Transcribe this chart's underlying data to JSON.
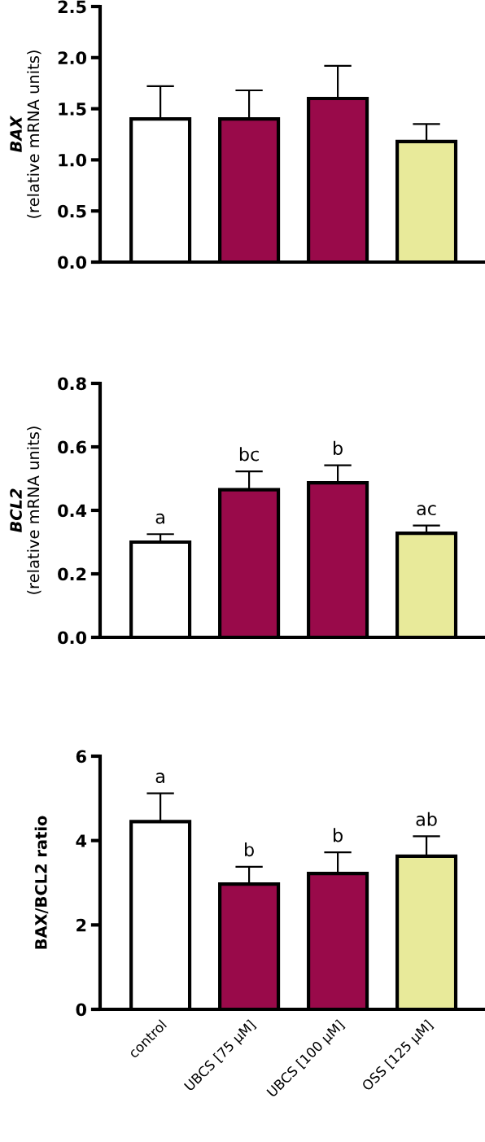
{
  "chart_data": [
    {
      "type": "bar",
      "ylabel": "BAX\n(relative mRNA units)",
      "categories": [
        "control",
        "UBCS [75 µM]",
        "UBCS [100 µM]",
        "OSS [125 µM]"
      ],
      "values": [
        1.4,
        1.4,
        1.6,
        1.18
      ],
      "colors": [
        "#ffffff",
        "#990a4a",
        "#990a4a",
        "#e8ea9a"
      ],
      "errors": [
        [
          1.4,
          1.72
        ],
        [
          1.4,
          1.68
        ],
        [
          1.6,
          1.92
        ],
        [
          1.18,
          1.35
        ]
      ],
      "ylim": [
        0,
        2.5
      ],
      "yticks": [
        {
          "value": 0,
          "label": "0.0"
        },
        0.5,
        {
          "value": 1,
          "label": "1.0"
        },
        1.5,
        {
          "value": 2,
          "label": "2.0"
        },
        2.5
      ],
      "tick_labels": "y",
      "grid": false,
      "legend": false
    },
    {
      "type": "bar",
      "ylabel": "BCL2\n(relative mRNA units)",
      "categories": [
        "control",
        "UBCS [75 µM]",
        "UBCS [100 µM]",
        "OSS [125 µM]"
      ],
      "values": [
        0.3,
        0.465,
        0.487,
        0.328
      ],
      "colors": [
        "#ffffff",
        "#990a4a",
        "#990a4a",
        "#e8ea9a"
      ],
      "errors": [
        [
          0.3,
          0.325
        ],
        [
          0.465,
          0.523
        ],
        [
          0.487,
          0.542
        ],
        [
          0.328,
          0.352
        ]
      ],
      "ylim": [
        0,
        0.8
      ],
      "yticks": [
        {
          "value": 0,
          "label": "0.0"
        },
        0.2,
        0.4,
        0.6,
        0.8
      ],
      "tick_labels": "y",
      "grid": false,
      "legend": false,
      "annotations": [
        {
          "text": "a",
          "x": "control",
          "y": 0.325
        },
        {
          "text": "bc",
          "x": "UBCS [75 µM]",
          "y": 0.523
        },
        {
          "text": "b",
          "x": "UBCS [100 µM]",
          "y": 0.542
        },
        {
          "text": "ac",
          "x": "OSS [125 µM]",
          "y": 0.352
        }
      ]
    },
    {
      "type": "bar",
      "ylabel": "BAX/BCL2 ratio",
      "categories": [
        "control",
        "UBCS [75 µM]",
        "UBCS [100 µM]",
        "OSS [125 µM]"
      ],
      "values": [
        4.45,
        2.97,
        3.22,
        3.63
      ],
      "colors": [
        "#ffffff",
        "#990a4a",
        "#990a4a",
        "#e8ea9a"
      ],
      "errors": [
        [
          4.45,
          5.12
        ],
        [
          2.97,
          3.38
        ],
        [
          3.22,
          3.72
        ],
        [
          3.63,
          4.1
        ]
      ],
      "ylim": [
        0,
        6
      ],
      "yticks": [
        0,
        2,
        4,
        6
      ],
      "grid": false,
      "legend": false,
      "annotations": [
        {
          "text": "a",
          "x": "control",
          "y": 5.12
        },
        {
          "text": "b",
          "x": "UBCS [75 µM]",
          "y": 3.38
        },
        {
          "text": "b",
          "x": "UBCS [100 µM]",
          "y": 3.72
        },
        {
          "text": "ab",
          "x": "OSS [125 µM]",
          "y": 4.1
        }
      ]
    }
  ]
}
